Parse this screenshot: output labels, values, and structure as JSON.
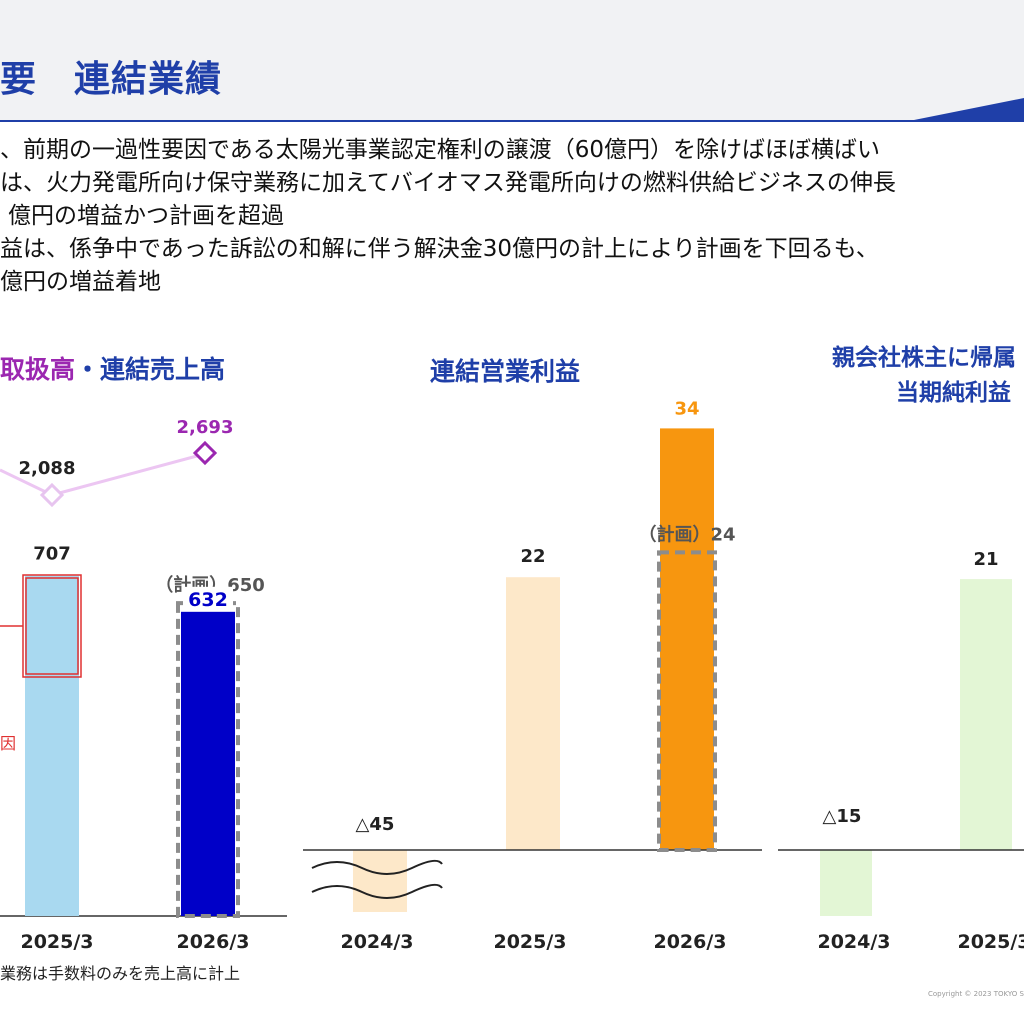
{
  "header": {
    "title": "要　連結業績"
  },
  "bullets": [
    "、前期の一過性要因である太陽光事業認定権利の譲渡（60億円）を除けばほぼ横ばい",
    "は、火力発電所向け保守業務に加えてバイオマス発電所向けの燃料供給ビジネスの伸長",
    "億円の増益かつ計画を超過",
    "益は、係争中であった訴訟の和解に伴う解決金30億円の計上により計画を下回るも、",
    "億円の増益着地"
  ],
  "chart_titles": {
    "left_part1": "取扱高",
    "left_part2": "・連結売上高",
    "middle": "連結営業利益",
    "right_line1": "親会社株主に帰属",
    "right_line2": "当期純利益"
  },
  "colors": {
    "title_blue": "#1f3fa8",
    "purple": "#9b27b0",
    "light_blue_bar": "#a9d9f0",
    "navy_bar": "#0000c8",
    "peach_bar": "#fde8c9",
    "orange_bar": "#f7960f",
    "light_green_bar": "#e3f6d5",
    "red_box": "#e03030",
    "plan_outline": "#8c8c8c"
  },
  "chart_data": [
    {
      "type": "bar",
      "title": "取扱高・連結売上高",
      "categories": [
        "2025/3",
        "2026/3"
      ],
      "series": [
        {
          "name": "取扱高",
          "type": "line",
          "values": [
            2088,
            2693
          ]
        },
        {
          "name": "連結売上高",
          "values": [
            707,
            632
          ]
        }
      ],
      "plan": {
        "category": "2026/3",
        "label": "（計画）650",
        "value": 650
      },
      "labels": {
        "line": [
          "2,088",
          "2,693"
        ],
        "bars": [
          "707",
          "632"
        ]
      },
      "annotation_fragment": "因"
    },
    {
      "type": "bar",
      "title": "連結営業利益",
      "categories": [
        "2024/3",
        "2025/3",
        "2026/3"
      ],
      "values": [
        -45,
        22,
        34
      ],
      "value_labels": [
        "△45",
        "22",
        "34"
      ],
      "plan": {
        "category": "2026/3",
        "label": "（計画）24",
        "value": 24
      },
      "axis_break": true
    },
    {
      "type": "bar",
      "title": "親会社株主に帰属 当期純利益",
      "categories": [
        "2024/3",
        "2025/3"
      ],
      "values": [
        -15,
        21
      ],
      "value_labels": [
        "△15",
        "21"
      ]
    }
  ],
  "footnote": "業務は手数料のみを売上高に計上",
  "copyright": "Copyright © 2023 TOKYO S"
}
